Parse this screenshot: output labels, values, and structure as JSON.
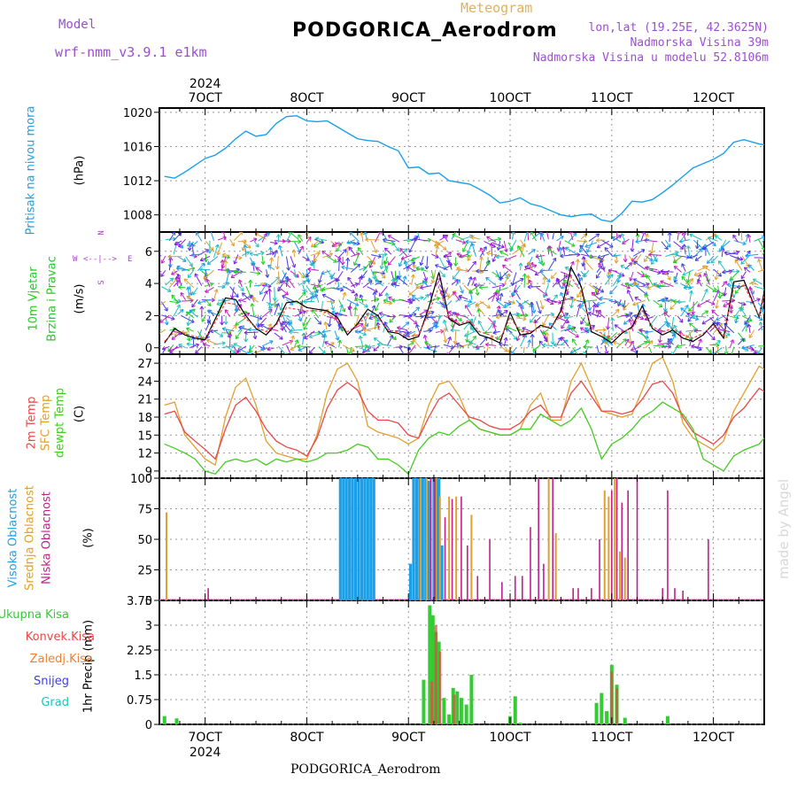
{
  "header": {
    "model_label": "Model",
    "model_name": "wrf-nmm_v3.9.1 e1km",
    "chart_type_label": "Meteogram",
    "station_title": "PODGORICA_Aerodrom",
    "lonlat": "lon,lat (19.25E, 42.3625N)",
    "elevation": "Nadmorska Visina 39m",
    "model_elevation": "Nadmorska Visina u modelu 52.8106m"
  },
  "footer_title": "PODGORICA_Aerodrom",
  "watermark": "made by Angel",
  "wind_compass": {
    "n": "N",
    "w": "W",
    "e": "E",
    "s": "S",
    "arrows": "<--|-->"
  },
  "colors": {
    "pressure": "#1aa0e8",
    "wind_label": "#22cc22",
    "temp2m": "#e84848",
    "sfc_temp": "#e0a030",
    "dewpoint": "#44cc22",
    "high_cloud": "#1aa0e8",
    "mid_cloud": "#e0a030",
    "low_cloud": "#c0208a",
    "total_precip": "#33cc33",
    "conv_precip": "#e84848",
    "large_scale_precip": "#f08030",
    "snow": "#4040e0",
    "graupel": "#22c0c0"
  },
  "chart_data": [
    {
      "id": "pressure",
      "type": "line",
      "ylabel_lines": [
        "Pritisak na nivou mora",
        "(hPa)"
      ],
      "ylim": [
        1006,
        1020.5
      ],
      "yticks": [
        "1008",
        "1012",
        "1016",
        "1020"
      ],
      "x_days": [
        6.6,
        6.7,
        6.8,
        6.9,
        7.0,
        7.1,
        7.2,
        7.3,
        7.4,
        7.5,
        7.6,
        7.7,
        7.8,
        7.9,
        8.0,
        8.1,
        8.2,
        8.3,
        8.4,
        8.5,
        8.6,
        8.7,
        8.8,
        8.9,
        9.0,
        9.1,
        9.2,
        9.3,
        9.4,
        9.5,
        9.6,
        9.7,
        9.8,
        9.9,
        10.0,
        10.1,
        10.2,
        10.3,
        10.4,
        10.5,
        10.6,
        10.7,
        10.8,
        10.9,
        11.0,
        11.1,
        11.2,
        11.3,
        11.4,
        11.5,
        11.6,
        11.7,
        11.8,
        11.9,
        12.0,
        12.1,
        12.2,
        12.3,
        12.45,
        12.5
      ],
      "series": [
        {
          "values": [
            1012.5,
            1012.3,
            1013.0,
            1013.8,
            1014.6,
            1015.0,
            1015.8,
            1016.9,
            1017.8,
            1017.2,
            1017.4,
            1018.7,
            1019.5,
            1019.6,
            1019.0,
            1018.9,
            1019.0,
            1018.3,
            1017.6,
            1016.9,
            1016.7,
            1016.6,
            1016.0,
            1015.5,
            1013.5,
            1013.6,
            1012.8,
            1012.9,
            1012.0,
            1011.8,
            1011.6,
            1011.0,
            1010.3,
            1009.4,
            1009.6,
            1010.0,
            1009.3,
            1009.0,
            1008.5,
            1008.0,
            1007.8,
            1008.0,
            1008.1,
            1007.4,
            1007.2,
            1008.2,
            1009.6,
            1009.5,
            1009.8,
            1010.6,
            1011.5,
            1012.5,
            1013.5,
            1014.0,
            1014.5,
            1015.2,
            1016.5,
            1016.8,
            1016.3,
            1016.2
          ]
        }
      ]
    },
    {
      "id": "wind",
      "type": "line",
      "ylabel_lines": [
        "10m Vjetar",
        "Brzina i Pravac",
        "(m/s)"
      ],
      "ylim": [
        -0.4,
        7.2
      ],
      "yticks": [
        "0",
        "2",
        "4",
        "6"
      ],
      "x_days": [
        6.6,
        6.7,
        6.8,
        6.9,
        7.0,
        7.1,
        7.2,
        7.3,
        7.4,
        7.5,
        7.6,
        7.7,
        7.8,
        7.9,
        8.0,
        8.1,
        8.2,
        8.3,
        8.4,
        8.5,
        8.6,
        8.7,
        8.8,
        8.9,
        9.0,
        9.1,
        9.2,
        9.3,
        9.4,
        9.5,
        9.6,
        9.7,
        9.8,
        9.9,
        10.0,
        10.1,
        10.2,
        10.3,
        10.4,
        10.5,
        10.6,
        10.7,
        10.8,
        10.9,
        11.0,
        11.1,
        11.2,
        11.3,
        11.4,
        11.5,
        11.6,
        11.7,
        11.8,
        11.9,
        12.0,
        12.1,
        12.2,
        12.3,
        12.45,
        12.5
      ],
      "series": [
        {
          "values": [
            0.3,
            1.2,
            0.8,
            0.6,
            0.5,
            1.8,
            3.1,
            3.0,
            2.0,
            1.2,
            0.8,
            1.5,
            2.8,
            2.9,
            2.5,
            2.4,
            2.3,
            1.9,
            0.8,
            1.5,
            2.4,
            2.0,
            1.0,
            0.9,
            0.5,
            0.7,
            2.5,
            4.7,
            1.8,
            1.4,
            1.6,
            0.8,
            0.6,
            0.3,
            2.2,
            0.8,
            0.9,
            1.4,
            1.2,
            2.3,
            5.0,
            3.8,
            1.0,
            0.7,
            0.3,
            0.9,
            1.3,
            2.6,
            1.2,
            0.8,
            1.1,
            0.6,
            0.4,
            0.8,
            1.5,
            0.6,
            4.1,
            4.2,
            1.9,
            3.5
          ]
        },
        {
          "values": [
            0.4,
            1.0,
            0.9,
            0.7,
            0.6,
            1.6,
            2.8,
            2.7,
            1.8,
            1.3,
            1.0,
            1.4,
            2.5,
            2.4,
            2.3,
            2.3,
            2.2,
            1.7,
            1.0,
            1.4,
            2.1,
            1.9,
            1.1,
            1.0,
            0.7,
            0.8,
            2.2,
            3.8,
            1.9,
            1.5,
            1.7,
            1.0,
            0.8,
            0.5,
            1.9,
            1.0,
            1.0,
            1.3,
            1.3,
            2.0,
            4.4,
            3.5,
            1.2,
            0.9,
            0.5,
            1.0,
            1.2,
            2.3,
            1.3,
            1.0,
            1.2,
            0.8,
            0.6,
            0.9,
            1.4,
            0.8,
            3.7,
            3.9,
            2.0,
            3.3
          ]
        }
      ]
    },
    {
      "id": "temperature",
      "type": "line",
      "ylabel_lines": [
        "2m Temp",
        "SFC Temp",
        "dewpt Temp",
        "(C)"
      ],
      "ylim": [
        7.8,
        28.5
      ],
      "yticks": [
        "9",
        "12",
        "15",
        "18",
        "21",
        "24",
        "27"
      ],
      "x_days": [
        6.6,
        6.7,
        6.8,
        6.9,
        7.0,
        7.1,
        7.2,
        7.3,
        7.4,
        7.5,
        7.6,
        7.7,
        7.8,
        7.9,
        8.0,
        8.1,
        8.2,
        8.3,
        8.4,
        8.5,
        8.6,
        8.7,
        8.8,
        8.9,
        9.0,
        9.1,
        9.2,
        9.3,
        9.4,
        9.5,
        9.6,
        9.7,
        9.8,
        9.9,
        10.0,
        10.1,
        10.2,
        10.3,
        10.4,
        10.5,
        10.6,
        10.7,
        10.8,
        10.9,
        11.0,
        11.1,
        11.2,
        11.3,
        11.4,
        11.5,
        11.6,
        11.7,
        11.8,
        11.9,
        12.0,
        12.1,
        12.2,
        12.3,
        12.45,
        12.5
      ],
      "series": [
        {
          "name": "2m Temp",
          "values": [
            18.5,
            19.0,
            15.5,
            14.0,
            12.6,
            11.0,
            16.0,
            20.0,
            21.3,
            19.0,
            16.0,
            14.0,
            13.0,
            12.5,
            11.5,
            14.5,
            19.5,
            22.5,
            23.8,
            22.5,
            19.0,
            17.5,
            17.5,
            17.0,
            15.0,
            14.5,
            18.0,
            21.0,
            22.0,
            20.0,
            18.0,
            17.5,
            16.5,
            16.0,
            16.0,
            17.0,
            19.0,
            20.0,
            18.0,
            18.0,
            22.0,
            24.0,
            21.5,
            19.0,
            19.0,
            18.5,
            19.0,
            21.0,
            23.5,
            24.0,
            22.0,
            18.0,
            15.5,
            14.5,
            13.5,
            15.0,
            18.0,
            19.5,
            22.8,
            22.3
          ]
        },
        {
          "name": "SFC Temp",
          "values": [
            20.0,
            20.5,
            15.0,
            13.0,
            11.0,
            10.0,
            18.0,
            23.0,
            24.5,
            20.0,
            14.0,
            12.0,
            11.5,
            11.0,
            11.0,
            15.0,
            22.0,
            26.0,
            27.0,
            24.0,
            16.5,
            15.5,
            15.0,
            14.5,
            13.5,
            14.5,
            20.0,
            23.5,
            24.0,
            21.5,
            17.5,
            16.0,
            15.5,
            15.0,
            15.0,
            16.0,
            20.0,
            22.0,
            17.5,
            17.5,
            24.0,
            27.0,
            23.0,
            19.0,
            18.5,
            18.0,
            18.5,
            22.5,
            27.0,
            28.0,
            24.0,
            17.0,
            14.5,
            13.5,
            12.5,
            14.0,
            19.0,
            22.0,
            26.5,
            26.0
          ]
        },
        {
          "name": "dewpt Temp",
          "values": [
            13.5,
            12.8,
            12.0,
            11.0,
            9.0,
            8.5,
            10.5,
            11.0,
            10.5,
            11.0,
            10.0,
            11.0,
            10.5,
            11.0,
            10.5,
            11.0,
            12.0,
            12.0,
            12.5,
            13.5,
            13.0,
            11.0,
            11.0,
            10.0,
            8.5,
            12.5,
            14.5,
            15.5,
            15.0,
            16.5,
            17.5,
            16.0,
            15.5,
            15.0,
            15.0,
            16.0,
            16.0,
            18.5,
            17.5,
            16.5,
            17.5,
            19.5,
            16.0,
            11.0,
            13.5,
            14.5,
            16.0,
            18.0,
            19.0,
            20.5,
            19.5,
            18.5,
            16.0,
            11.0,
            10.0,
            9.0,
            11.5,
            12.5,
            13.5,
            14.5
          ]
        }
      ]
    },
    {
      "id": "clouds",
      "type": "bar",
      "ylabel_lines": [
        "Visoka Oblacnost",
        "Srednja Oblacnost",
        "Niska Oblacnost",
        "(%)"
      ],
      "ylim": [
        0,
        100
      ],
      "yticks": [
        "0",
        "25",
        "50",
        "75",
        "100"
      ],
      "series": [
        {
          "name": "Visoka Oblacnost",
          "x_days": [
            8.33,
            8.36,
            8.39,
            8.42,
            8.45,
            8.48,
            8.51,
            8.54,
            8.57,
            8.6,
            8.63,
            8.66,
            9.02,
            9.05,
            9.08,
            9.11,
            9.14,
            9.17,
            9.2,
            9.25,
            9.28,
            9.3,
            9.33
          ],
          "values": [
            100,
            100,
            100,
            100,
            100,
            100,
            100,
            100,
            100,
            100,
            100,
            100,
            30,
            100,
            100,
            100,
            100,
            100,
            98,
            100,
            100,
            100,
            45
          ]
        },
        {
          "name": "Srednja Oblacnost",
          "x_days": [
            6.62,
            9.12,
            9.18,
            9.22,
            9.27,
            9.31,
            9.4,
            9.47,
            9.62,
            10.38,
            10.45,
            10.93,
            10.97,
            11.03,
            11.08,
            11.13
          ],
          "values": [
            72,
            100,
            100,
            100,
            100,
            85,
            85,
            85,
            70,
            100,
            55,
            90,
            85,
            100,
            40,
            35
          ]
        },
        {
          "name": "Niska Oblacnost",
          "x_days": [
            7.03,
            9.22,
            9.26,
            9.36,
            9.43,
            9.52,
            9.58,
            9.68,
            9.8,
            9.92,
            10.05,
            10.12,
            10.2,
            10.28,
            10.33,
            10.42,
            10.62,
            10.67,
            10.8,
            10.88,
            11.0,
            11.05,
            11.1,
            11.16,
            11.25,
            11.5,
            11.55,
            11.62,
            11.7,
            11.95
          ],
          "values": [
            10,
            100,
            100,
            68,
            83,
            85,
            45,
            20,
            50,
            15,
            20,
            20,
            60,
            100,
            30,
            100,
            10,
            10,
            10,
            50,
            90,
            100,
            80,
            90,
            100,
            10,
            90,
            10,
            8,
            50
          ]
        }
      ]
    },
    {
      "id": "precip",
      "type": "bar",
      "ylabel_lines": [
        "1hr Precip (mm)"
      ],
      "ylim": [
        0,
        3.75
      ],
      "yticks": [
        "0",
        "0.75",
        "1.5",
        "2.25",
        "3",
        "3.75"
      ],
      "series": [
        {
          "name": "Ukupna Kisa",
          "x_days": [
            6.6,
            6.72,
            9.15,
            9.21,
            9.24,
            9.27,
            9.3,
            9.35,
            9.4,
            9.44,
            9.48,
            9.52,
            9.57,
            9.62,
            10.0,
            10.05,
            10.1,
            10.85,
            10.9,
            10.95,
            11.0,
            11.05,
            11.13,
            11.55
          ],
          "values": [
            0.25,
            0.18,
            1.35,
            3.6,
            3.3,
            2.8,
            2.5,
            0.8,
            0.3,
            1.1,
            1.0,
            0.8,
            0.6,
            1.5,
            0.25,
            0.85,
            0.05,
            0.65,
            0.95,
            0.4,
            1.8,
            1.2,
            0.2,
            0.25
          ]
        },
        {
          "name": "Konvek.Kisa",
          "x_days": [
            9.23,
            9.27,
            9.31,
            9.45,
            11.0,
            11.05
          ],
          "values": [
            1.3,
            3.0,
            2.2,
            0.9,
            1.6,
            1.1
          ]
        },
        {
          "name": "Zaledj.Kisa",
          "x_days": [],
          "values": []
        },
        {
          "name": "Snijeg",
          "x_days": [],
          "values": []
        },
        {
          "name": "Grad",
          "x_days": [],
          "values": []
        }
      ]
    }
  ],
  "x_axis": {
    "year_top": "2024",
    "year_bottom": "2024",
    "ticks": [
      {
        "day": 7,
        "label": "7OCT"
      },
      {
        "day": 8,
        "label": "8OCT"
      },
      {
        "day": 9,
        "label": "9OCT"
      },
      {
        "day": 10,
        "label": "10OCT"
      },
      {
        "day": 11,
        "label": "11OCT"
      },
      {
        "day": 12,
        "label": "12OCT"
      }
    ],
    "xlim": [
      6.55,
      12.5
    ]
  }
}
